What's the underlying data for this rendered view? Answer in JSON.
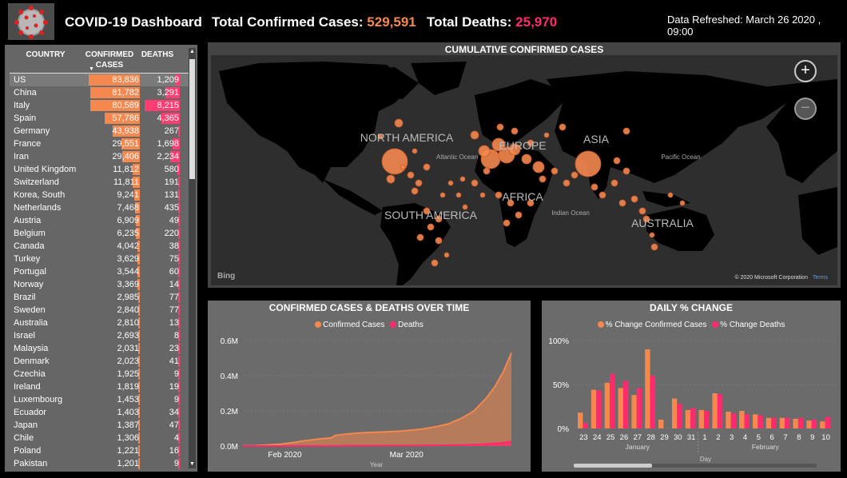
{
  "header": {
    "title": "COVID-19 Dashboard",
    "confirmed_label": "Total Confirmed Cases:",
    "confirmed_value": "529,591",
    "deaths_label": "Total Deaths:",
    "deaths_value": "25,970",
    "refreshed": "Data Refreshed: March 26 2020 , 09:00"
  },
  "colors": {
    "confirmed": "#f4884f",
    "deaths": "#ff2a6d",
    "panel": "#6b6b6b",
    "background": "#000000"
  },
  "table": {
    "headers": {
      "country": "COUNTRY",
      "confirmed": "CONFIRMED CASES",
      "deaths": "DEATHS"
    },
    "rows": [
      {
        "country": "US",
        "confirmed": "83,836",
        "deaths": "1,209"
      },
      {
        "country": "China",
        "confirmed": "81,782",
        "deaths": "3,291"
      },
      {
        "country": "Italy",
        "confirmed": "80,589",
        "deaths": "8,215"
      },
      {
        "country": "Spain",
        "confirmed": "57,786",
        "deaths": "4,365"
      },
      {
        "country": "Germany",
        "confirmed": "43,938",
        "deaths": "267"
      },
      {
        "country": "France",
        "confirmed": "29,551",
        "deaths": "1,698"
      },
      {
        "country": "Iran",
        "confirmed": "29,406",
        "deaths": "2,234"
      },
      {
        "country": "United Kingdom",
        "confirmed": "11,812",
        "deaths": "580"
      },
      {
        "country": "Switzerland",
        "confirmed": "11,811",
        "deaths": "191"
      },
      {
        "country": "Korea, South",
        "confirmed": "9,241",
        "deaths": "131"
      },
      {
        "country": "Netherlands",
        "confirmed": "7,468",
        "deaths": "435"
      },
      {
        "country": "Austria",
        "confirmed": "6,909",
        "deaths": "49"
      },
      {
        "country": "Belgium",
        "confirmed": "6,235",
        "deaths": "220"
      },
      {
        "country": "Canada",
        "confirmed": "4,042",
        "deaths": "38"
      },
      {
        "country": "Turkey",
        "confirmed": "3,629",
        "deaths": "75"
      },
      {
        "country": "Portugal",
        "confirmed": "3,544",
        "deaths": "60"
      },
      {
        "country": "Norway",
        "confirmed": "3,369",
        "deaths": "14"
      },
      {
        "country": "Brazil",
        "confirmed": "2,985",
        "deaths": "77"
      },
      {
        "country": "Sweden",
        "confirmed": "2,840",
        "deaths": "77"
      },
      {
        "country": "Australia",
        "confirmed": "2,810",
        "deaths": "13"
      },
      {
        "country": "Israel",
        "confirmed": "2,693",
        "deaths": "8"
      },
      {
        "country": "Malaysia",
        "confirmed": "2,031",
        "deaths": "23"
      },
      {
        "country": "Denmark",
        "confirmed": "2,023",
        "deaths": "41"
      },
      {
        "country": "Czechia",
        "confirmed": "1,925",
        "deaths": "9"
      },
      {
        "country": "Ireland",
        "confirmed": "1,819",
        "deaths": "19"
      },
      {
        "country": "Luxembourg",
        "confirmed": "1,453",
        "deaths": "9"
      },
      {
        "country": "Ecuador",
        "confirmed": "1,403",
        "deaths": "34"
      },
      {
        "country": "Japan",
        "confirmed": "1,387",
        "deaths": "47"
      },
      {
        "country": "Chile",
        "confirmed": "1,306",
        "deaths": "4"
      },
      {
        "country": "Poland",
        "confirmed": "1,221",
        "deaths": "16"
      },
      {
        "country": "Pakistan",
        "confirmed": "1,201",
        "deaths": "9"
      }
    ]
  },
  "map": {
    "title": "CUMULATIVE CONFIRMED CASES",
    "labels": {
      "north_america": "NORTH AMERICA",
      "south_america": "SOUTH AMERICA",
      "europe": "EUROPE",
      "africa": "AFRICA",
      "asia": "ASIA",
      "australia": "AUSTRALIA",
      "atlantic": "Atlantic Ocean",
      "pacific": "Pacific Ocean",
      "indian": "Indian Ocean"
    },
    "zoom_in": "+",
    "zoom_out": "−",
    "credit": "© 2020 Microsoft Corporation",
    "terms": "Terms",
    "bing": "Bing"
  },
  "chart_data": [
    {
      "type": "area",
      "title": "CONFIRMED CASES & DEATHS OVER TIME",
      "xlabel": "Year",
      "ylabel": "",
      "y_ticks": [
        "0.0M",
        "0.2M",
        "0.4M",
        "0.6M"
      ],
      "ylim": [
        0,
        600000
      ],
      "x_ticks": [
        "Feb 2020",
        "Mar 2020"
      ],
      "x": [
        "2020-01-22",
        "2020-01-25",
        "2020-01-28",
        "2020-01-31",
        "2020-02-03",
        "2020-02-06",
        "2020-02-09",
        "2020-02-12",
        "2020-02-13",
        "2020-02-16",
        "2020-02-19",
        "2020-02-22",
        "2020-02-25",
        "2020-02-28",
        "2020-03-02",
        "2020-03-05",
        "2020-03-08",
        "2020-03-11",
        "2020-03-14",
        "2020-03-17",
        "2020-03-20",
        "2020-03-22",
        "2020-03-24",
        "2020-03-26"
      ],
      "series": [
        {
          "name": "Confirmed Cases",
          "values": [
            600,
            2000,
            6000,
            10000,
            20000,
            31000,
            40000,
            46000,
            60000,
            69000,
            75000,
            78000,
            80500,
            84000,
            90000,
            97000,
            110000,
            126000,
            157000,
            198000,
            272000,
            336000,
            418000,
            529591
          ]
        },
        {
          "name": "Deaths",
          "values": [
            17,
            56,
            132,
            213,
            427,
            637,
            905,
            1116,
            1372,
            1666,
            2130,
            2461,
            2707,
            2870,
            3088,
            3355,
            3800,
            4600,
            5800,
            7900,
            11200,
            14600,
            18600,
            25970
          ]
        }
      ]
    },
    {
      "type": "bar",
      "title": "DAILY % CHANGE",
      "xlabel": "Day",
      "ylabel": "",
      "y_ticks": [
        "0%",
        "50%",
        "100%"
      ],
      "ylim": [
        0,
        100
      ],
      "categories": [
        "23",
        "24",
        "25",
        "26",
        "27",
        "28",
        "29",
        "30",
        "31",
        "1",
        "2",
        "3",
        "4",
        "5",
        "6",
        "7",
        "8",
        "9",
        "10"
      ],
      "month_labels": [
        "January",
        "February"
      ],
      "series": [
        {
          "name": "% Change Confirmed Cases",
          "values": [
            18,
            44,
            52,
            46,
            38,
            90,
            10,
            34,
            21,
            21,
            40,
            19,
            20,
            16,
            12,
            12,
            11,
            9,
            8
          ]
        },
        {
          "name": "% Change Deaths",
          "values": [
            6,
            43,
            62,
            54,
            46,
            60,
            0,
            28,
            23,
            20,
            39,
            17,
            16,
            15,
            12,
            12,
            12,
            10,
            13
          ]
        }
      ]
    }
  ]
}
